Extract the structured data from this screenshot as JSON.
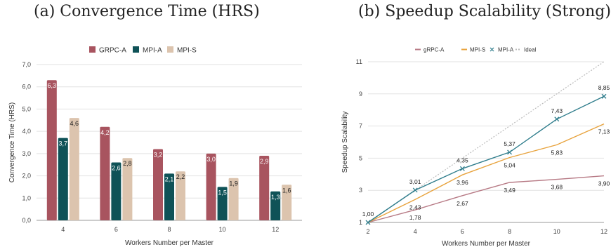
{
  "captions": {
    "a": "(a) Convergence Time (HRS)",
    "b": "(b) Speedup Scalability (Strong)"
  },
  "chart_data": [
    {
      "type": "bar",
      "title": "",
      "xlabel": "Workers Number per Master",
      "ylabel": "Convergence Time (HRS)",
      "ylim": [
        0,
        7
      ],
      "yticks": [
        "0,0",
        "1,0",
        "2,0",
        "3,0",
        "4,0",
        "5,0",
        "6,0",
        "7,0"
      ],
      "categories": [
        "4",
        "6",
        "8",
        "10",
        "12"
      ],
      "legend_position": "top-center",
      "grid": true,
      "series": [
        {
          "name": "GRPC-A",
          "color": "#a8545f",
          "values": [
            6.3,
            4.2,
            3.2,
            3.0,
            2.9
          ],
          "labels": [
            "6,3",
            "4,2",
            "3,2",
            "3,0",
            "2,9"
          ]
        },
        {
          "name": "MPI-A",
          "color": "#0f5257",
          "values": [
            3.7,
            2.6,
            2.1,
            1.5,
            1.3
          ],
          "labels": [
            "3,7",
            "2,6",
            "2,1",
            "1,5",
            "1,3"
          ]
        },
        {
          "name": "MPI-S",
          "color": "#dcc4ae",
          "values": [
            4.6,
            2.8,
            2.2,
            1.9,
            1.6
          ],
          "labels": [
            "4,6",
            "2,8",
            "2,2",
            "1,9",
            "1,6"
          ]
        }
      ]
    },
    {
      "type": "line",
      "title": "",
      "xlabel": "Workers Number per Master",
      "ylabel": "Speedup Scalability",
      "x": [
        2,
        4,
        6,
        8,
        10,
        12
      ],
      "xticks": [
        "2",
        "4",
        "6",
        "8",
        "10",
        "12"
      ],
      "ylim": [
        1,
        11
      ],
      "yticks": [
        "1",
        "3",
        "5",
        "7",
        "9",
        "11"
      ],
      "legend_position": "top-center",
      "grid": true,
      "series": [
        {
          "name": "gRPC-A",
          "color": "#b77a85",
          "marker": "none",
          "values": [
            1.0,
            1.78,
            2.67,
            3.49,
            3.68,
            3.9
          ],
          "labels": [
            "",
            "1,78",
            "2,67",
            "3,49",
            "3,68",
            "3,90"
          ],
          "label_pos": "below"
        },
        {
          "name": "MPI-S",
          "color": "#e8a33d",
          "marker": "none",
          "values": [
            1.0,
            2.43,
            3.96,
            5.04,
            5.83,
            7.13
          ],
          "labels": [
            "",
            "2,43",
            "3,96",
            "5,04",
            "5,83",
            "7,13"
          ],
          "label_pos": "below"
        },
        {
          "name": "MPI-A",
          "color": "#2f7d8c",
          "marker": "x",
          "values": [
            1.0,
            3.01,
            4.35,
            5.37,
            7.43,
            8.85
          ],
          "labels": [
            "1,00",
            "3,01",
            "4,35",
            "5,37",
            "7,43",
            "8,85"
          ],
          "label_pos": "above"
        },
        {
          "name": "Ideal",
          "color": "#bbbbbb",
          "marker": "none",
          "dashed": true,
          "values": [
            1,
            3,
            5,
            7,
            9,
            11
          ],
          "labels": []
        }
      ]
    }
  ]
}
